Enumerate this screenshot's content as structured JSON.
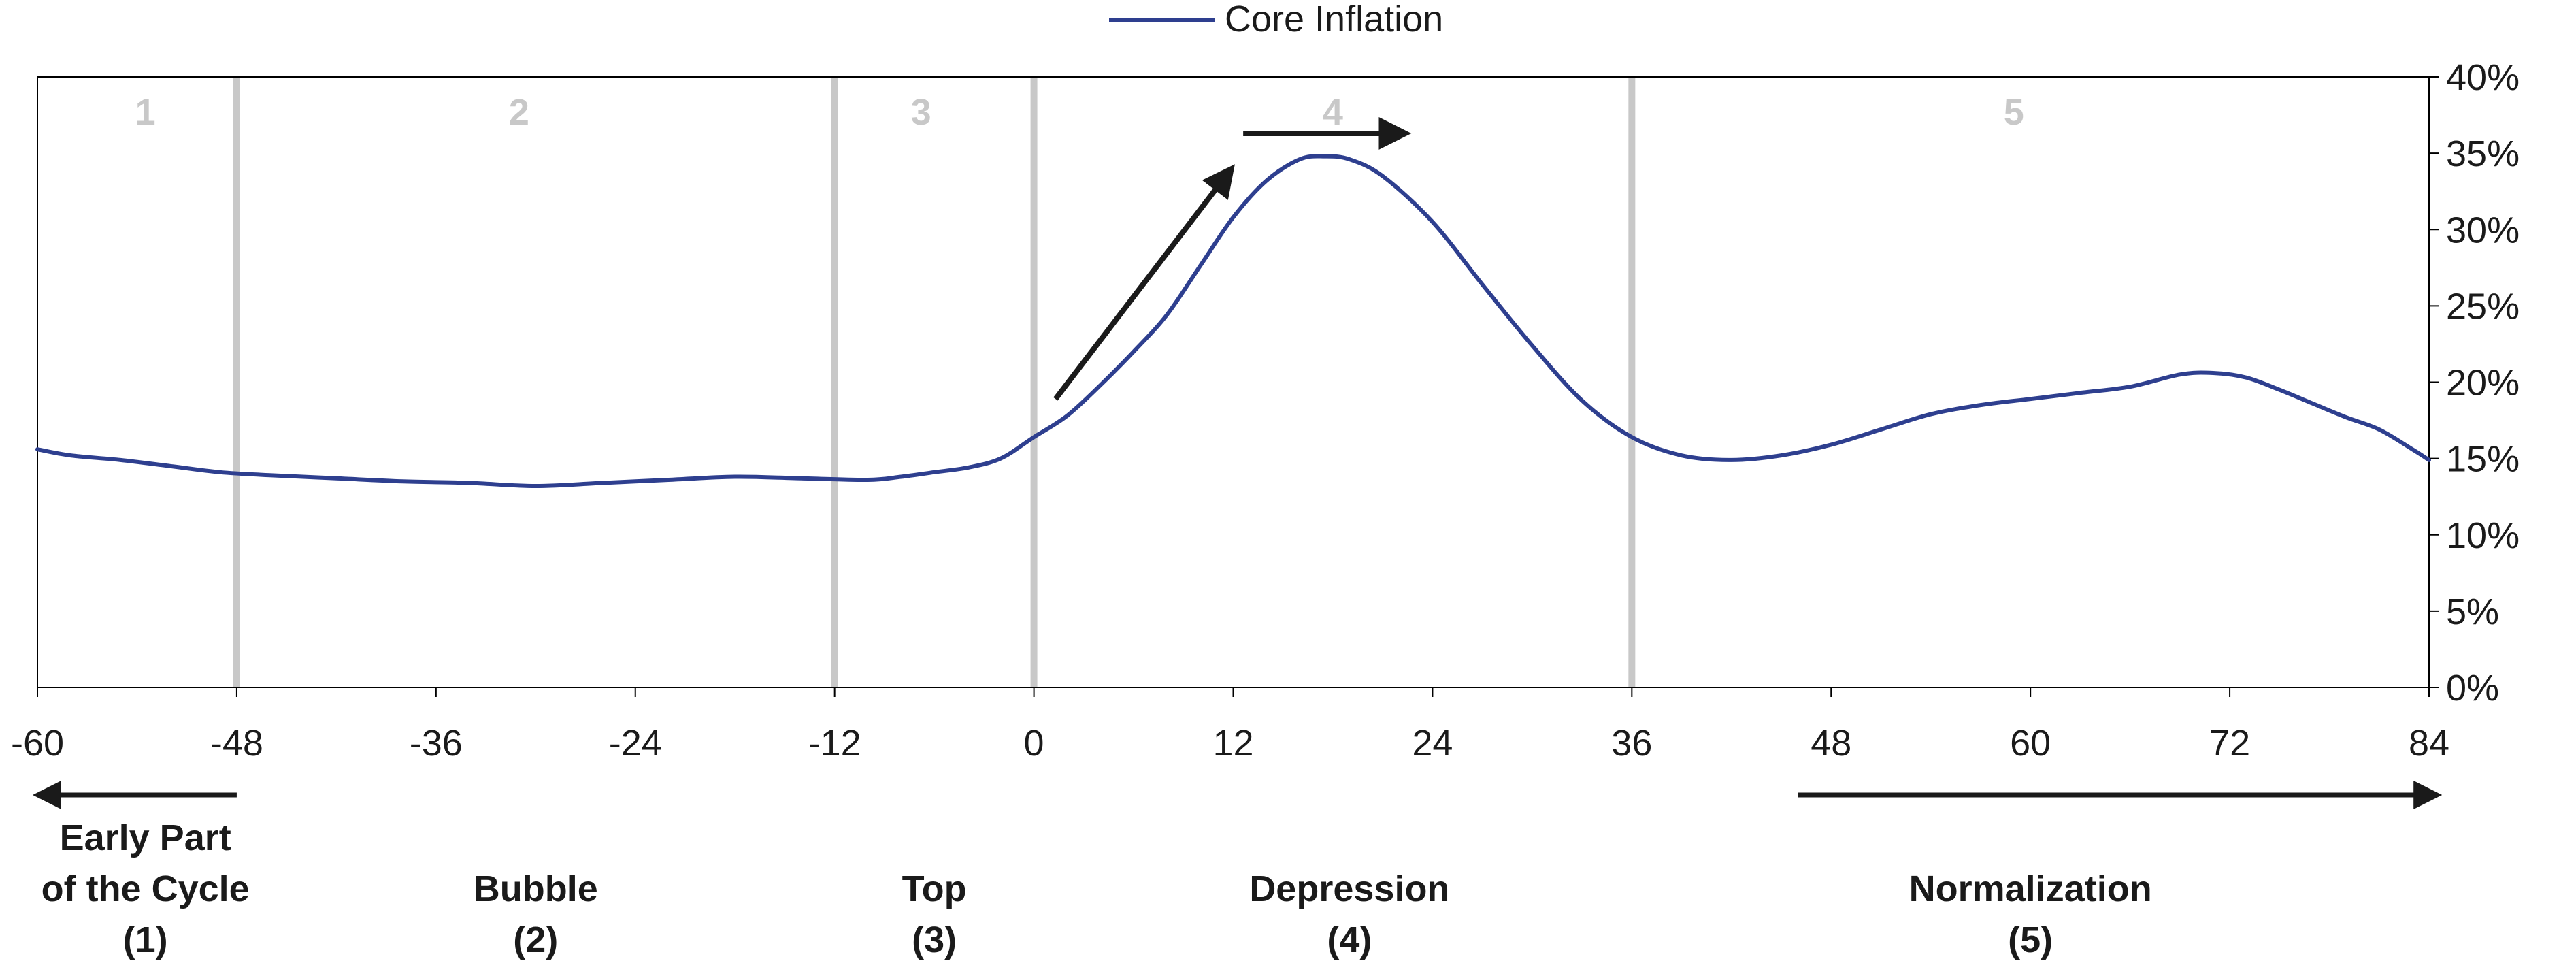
{
  "legend": {
    "series_name": "Core Inflation",
    "line_color": "#2e3f8f"
  },
  "colors": {
    "series": "#2e3f8f",
    "divider": "#c8c8c8",
    "phase_number": "#c8c8c8",
    "axis": "#000000",
    "arrow": "#1a1a1a",
    "text": "#1a1a1a"
  },
  "chart_data": {
    "type": "line",
    "title": "",
    "xlabel": "",
    "ylabel": "",
    "xlim": [
      -60,
      84
    ],
    "ylim": [
      0,
      40
    ],
    "x_ticks": [
      -60,
      -48,
      -36,
      -24,
      -12,
      0,
      12,
      24,
      36,
      48,
      60,
      72,
      84
    ],
    "x_tick_labels": [
      "-60",
      "-48",
      "-36",
      "-24",
      "-12",
      "0",
      "12",
      "24",
      "36",
      "48",
      "60",
      "72",
      "84"
    ],
    "y_ticks": [
      0,
      5,
      10,
      15,
      20,
      25,
      30,
      35,
      40
    ],
    "y_tick_labels": [
      "0%",
      "5%",
      "10%",
      "15%",
      "20%",
      "25%",
      "30%",
      "35%",
      "40%"
    ],
    "y_axis_side": "right",
    "grid": false,
    "legend_position": "top-center",
    "series": [
      {
        "name": "Core Inflation",
        "color": "#2e3f8f",
        "points": [
          [
            -60,
            15.6
          ],
          [
            -58,
            15.2
          ],
          [
            -55,
            14.9
          ],
          [
            -52,
            14.5
          ],
          [
            -49,
            14.1
          ],
          [
            -46,
            13.9
          ],
          [
            -42,
            13.7
          ],
          [
            -38,
            13.5
          ],
          [
            -34,
            13.4
          ],
          [
            -30,
            13.2
          ],
          [
            -26,
            13.4
          ],
          [
            -22,
            13.6
          ],
          [
            -18,
            13.8
          ],
          [
            -14,
            13.7
          ],
          [
            -10,
            13.6
          ],
          [
            -8,
            13.8
          ],
          [
            -6,
            14.1
          ],
          [
            -4,
            14.4
          ],
          [
            -2,
            15.0
          ],
          [
            0,
            16.4
          ],
          [
            2,
            17.8
          ],
          [
            4,
            19.8
          ],
          [
            6,
            22.0
          ],
          [
            8,
            24.4
          ],
          [
            10,
            27.6
          ],
          [
            12,
            30.8
          ],
          [
            14,
            33.2
          ],
          [
            16,
            34.6
          ],
          [
            17.5,
            34.8
          ],
          [
            19,
            34.6
          ],
          [
            21,
            33.5
          ],
          [
            24,
            30.5
          ],
          [
            27,
            26.4
          ],
          [
            30,
            22.4
          ],
          [
            33,
            18.8
          ],
          [
            36,
            16.4
          ],
          [
            39,
            15.2
          ],
          [
            42,
            14.9
          ],
          [
            45,
            15.2
          ],
          [
            48,
            15.9
          ],
          [
            51,
            16.9
          ],
          [
            54,
            17.9
          ],
          [
            57,
            18.5
          ],
          [
            60,
            18.9
          ],
          [
            63,
            19.3
          ],
          [
            66,
            19.7
          ],
          [
            69,
            20.5
          ],
          [
            71,
            20.6
          ],
          [
            73,
            20.3
          ],
          [
            75,
            19.5
          ],
          [
            77,
            18.6
          ],
          [
            79,
            17.7
          ],
          [
            81,
            16.9
          ],
          [
            83,
            15.6
          ],
          [
            84,
            14.9
          ]
        ]
      }
    ],
    "phase_dividers_x": [
      -48,
      -12,
      0,
      36
    ],
    "phases": [
      {
        "number": "1",
        "number_x": -53.5,
        "label_lines": [
          "Early Part",
          "of the Cycle",
          "(1)"
        ],
        "label_x": -53.5
      },
      {
        "number": "2",
        "number_x": -31,
        "label_lines": [
          "Bubble",
          "(2)"
        ],
        "label_x": -30
      },
      {
        "number": "3",
        "number_x": -6.8,
        "label_lines": [
          "Top",
          "(3)"
        ],
        "label_x": -6
      },
      {
        "number": "4",
        "number_x": 18,
        "label_lines": [
          "Depression",
          "(4)"
        ],
        "label_x": 19
      },
      {
        "number": "5",
        "number_x": 59,
        "label_lines": [
          "Normalization",
          "(5)"
        ],
        "label_x": 60
      }
    ],
    "annotations": {
      "in_plot_arrows": [
        {
          "from": [
            1.3,
            18.9
          ],
          "to": [
            11.9,
            34.0
          ],
          "description": "rising"
        },
        {
          "from": [
            12.6,
            36.3
          ],
          "to": [
            22.4,
            36.3
          ],
          "description": "sideways"
        }
      ],
      "below_axis_arrows": [
        {
          "from_x": -48,
          "to_x": -60,
          "direction": "left"
        },
        {
          "from_x": 46,
          "to_x": 84.5,
          "direction": "right"
        }
      ]
    }
  }
}
